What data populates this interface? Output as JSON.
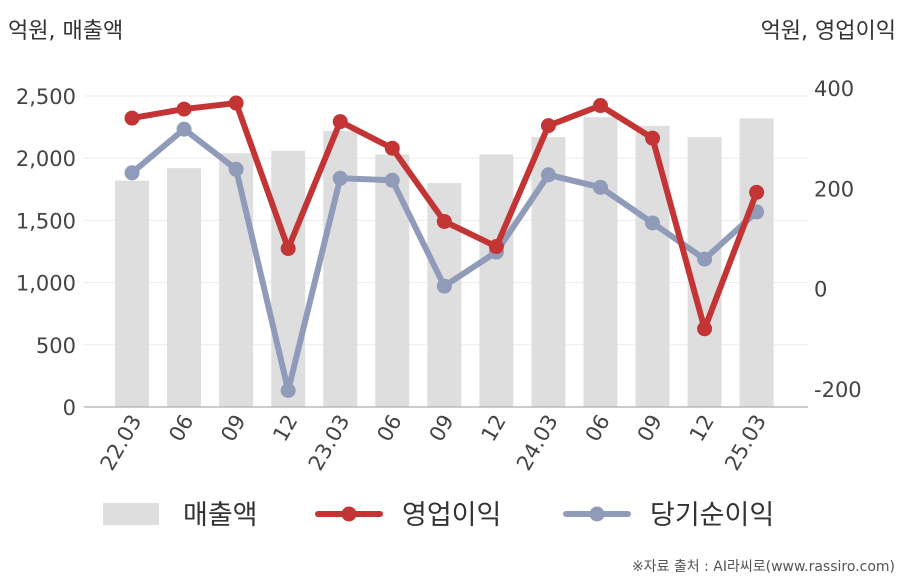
{
  "chart_data": {
    "type": "bar",
    "categories": [
      "22.03",
      "06",
      "09",
      "12",
      "23.03",
      "06",
      "09",
      "12",
      "24.03",
      "06",
      "09",
      "12",
      "25.03"
    ],
    "left_axis": {
      "unit_label": "억원, 매출액",
      "range": [
        0,
        2500
      ],
      "ticks": [
        0,
        500,
        1000,
        1500,
        2000,
        2500
      ],
      "tick_labels": [
        "0",
        "500",
        "1,000",
        "1,500",
        "2,000",
        "2,500"
      ]
    },
    "right_axis": {
      "unit_label": "억원, 영업이익",
      "range": [
        -200,
        400
      ],
      "ticks": [
        -200,
        0,
        200,
        400
      ],
      "tick_labels": [
        "-200",
        "0",
        "200",
        "400"
      ]
    },
    "series": [
      {
        "name": "매출액",
        "type": "bar",
        "axis": "left",
        "color": "#dedede",
        "values": [
          1820,
          1920,
          2040,
          2060,
          2220,
          2030,
          1800,
          2030,
          2170,
          2330,
          2260,
          2170,
          2320
        ]
      },
      {
        "name": "영업이익",
        "type": "line",
        "axis": "right",
        "color": "#c33434",
        "values": [
          340,
          358,
          370,
          80,
          333,
          280,
          134,
          84,
          325,
          365,
          300,
          -80,
          192
        ]
      },
      {
        "name": "당기순이익",
        "type": "line",
        "axis": "right",
        "color": "#8f9bb8",
        "values": [
          231,
          318,
          238,
          -203,
          220,
          216,
          5,
          73,
          227,
          202,
          131,
          59,
          153
        ]
      }
    ],
    "grid": true,
    "legend_position": "bottom",
    "source": "※자료 출처 : AI라씨로(www.rassiro.com)"
  }
}
